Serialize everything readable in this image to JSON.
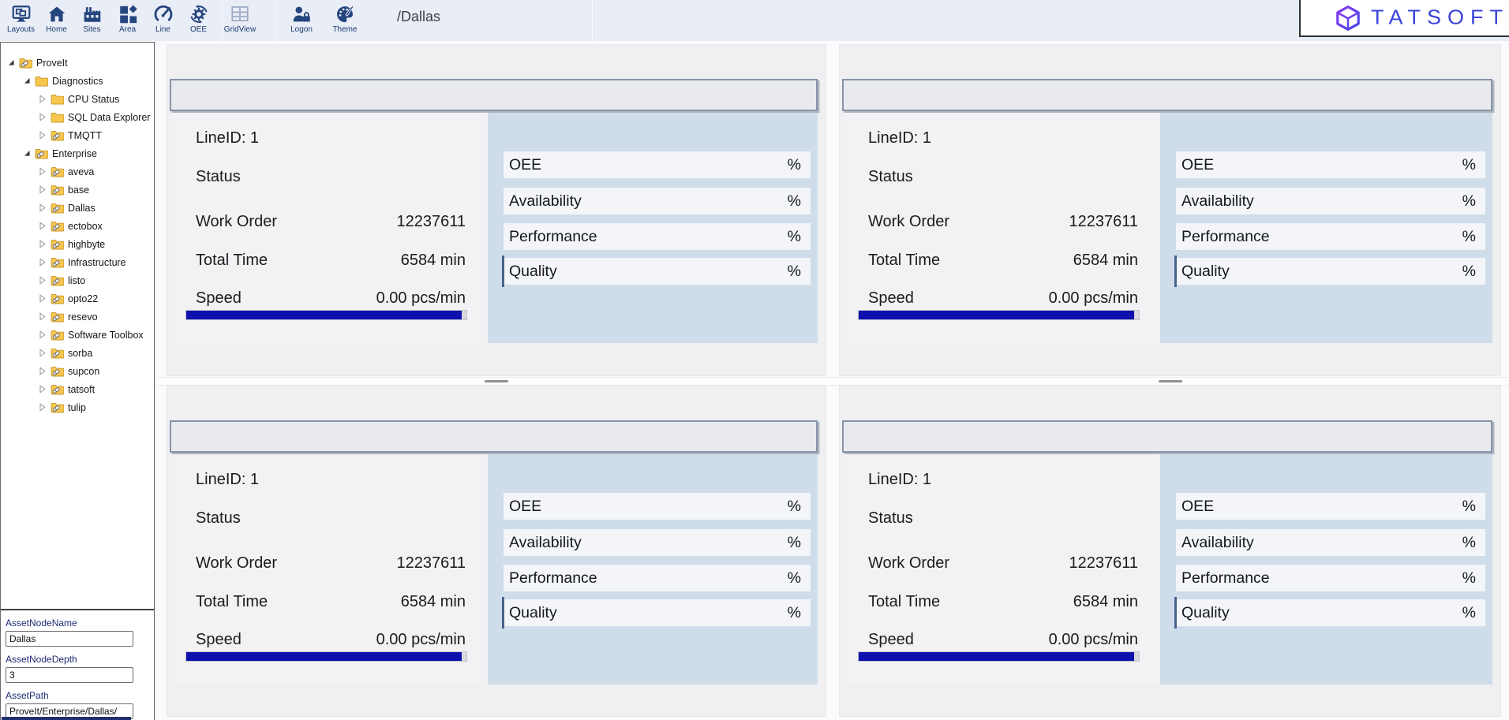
{
  "toolbar": {
    "buttons": [
      {
        "label": "Layouts",
        "icon": "layouts-icon"
      },
      {
        "label": "Home",
        "icon": "home-icon"
      },
      {
        "label": "Sites",
        "icon": "sites-icon"
      },
      {
        "label": "Area",
        "icon": "area-icon"
      },
      {
        "label": "Line",
        "icon": "line-icon"
      },
      {
        "label": "OEE",
        "icon": "oee-icon"
      },
      {
        "label": "GridView",
        "icon": "gridview-icon"
      },
      {
        "label": "Logon",
        "icon": "logon-icon"
      },
      {
        "label": "Theme",
        "icon": "theme-icon"
      }
    ],
    "breadcrumb": "/Dallas"
  },
  "logo": {
    "text": "TATSOFT"
  },
  "sidebar": {
    "tree": [
      {
        "label": "ProveIt",
        "level": 0,
        "state": "expanded",
        "icon": "linked-folder"
      },
      {
        "label": "Diagnostics",
        "level": 1,
        "state": "expanded",
        "icon": "folder"
      },
      {
        "label": "CPU Status",
        "level": 2,
        "state": "collapsed",
        "icon": "folder"
      },
      {
        "label": "SQL Data Explorer",
        "level": 2,
        "state": "collapsed",
        "icon": "folder"
      },
      {
        "label": "TMQTT",
        "level": 2,
        "state": "collapsed",
        "icon": "linked-folder"
      },
      {
        "label": "Enterprise",
        "level": 1,
        "state": "expanded",
        "icon": "linked-folder"
      },
      {
        "label": "aveva",
        "level": 2,
        "state": "collapsed",
        "icon": "linked-folder"
      },
      {
        "label": "base",
        "level": 2,
        "state": "collapsed",
        "icon": "linked-folder"
      },
      {
        "label": "Dallas",
        "level": 2,
        "state": "collapsed",
        "icon": "linked-folder"
      },
      {
        "label": "ectobox",
        "level": 2,
        "state": "collapsed",
        "icon": "linked-folder"
      },
      {
        "label": "highbyte",
        "level": 2,
        "state": "collapsed",
        "icon": "linked-folder"
      },
      {
        "label": "Infrastructure",
        "level": 2,
        "state": "collapsed",
        "icon": "linked-folder"
      },
      {
        "label": "listo",
        "level": 2,
        "state": "collapsed",
        "icon": "linked-folder"
      },
      {
        "label": "opto22",
        "level": 2,
        "state": "collapsed",
        "icon": "linked-folder"
      },
      {
        "label": "resevo",
        "level": 2,
        "state": "collapsed",
        "icon": "linked-folder"
      },
      {
        "label": "Software Toolbox",
        "level": 2,
        "state": "collapsed",
        "icon": "linked-folder"
      },
      {
        "label": "sorba",
        "level": 2,
        "state": "collapsed",
        "icon": "linked-folder"
      },
      {
        "label": "supcon",
        "level": 2,
        "state": "collapsed",
        "icon": "linked-folder"
      },
      {
        "label": "tatsoft",
        "level": 2,
        "state": "collapsed",
        "icon": "linked-folder"
      },
      {
        "label": "tulip",
        "level": 2,
        "state": "collapsed",
        "icon": "linked-folder"
      }
    ],
    "fields": [
      {
        "label": "AssetNodeName",
        "value": "Dallas"
      },
      {
        "label": "AssetNodeDepth",
        "value": "3"
      },
      {
        "label": "AssetPath",
        "value": "ProveIt/Enterprise/Dallas/"
      }
    ]
  },
  "panels": [
    {
      "line_id": "LineID: 1",
      "status_label": "Status",
      "metrics": [
        {
          "label": "Work Order",
          "value": "12237611"
        },
        {
          "label": "Total Time",
          "value": "6584 min"
        },
        {
          "label": "Speed",
          "value": "0.00 pcs/min"
        }
      ],
      "speed_progress_pct": 98.2,
      "kpis": [
        {
          "label": "OEE",
          "unit": "%"
        },
        {
          "label": "Availability",
          "unit": "%"
        },
        {
          "label": "Performance",
          "unit": "%"
        },
        {
          "label": "Quality",
          "unit": "%"
        }
      ]
    },
    {
      "line_id": "LineID: 1",
      "status_label": "Status",
      "metrics": [
        {
          "label": "Work Order",
          "value": "12237611"
        },
        {
          "label": "Total Time",
          "value": "6584 min"
        },
        {
          "label": "Speed",
          "value": "0.00 pcs/min"
        }
      ],
      "speed_progress_pct": 98.2,
      "kpis": [
        {
          "label": "OEE",
          "unit": "%"
        },
        {
          "label": "Availability",
          "unit": "%"
        },
        {
          "label": "Performance",
          "unit": "%"
        },
        {
          "label": "Quality",
          "unit": "%"
        }
      ]
    },
    {
      "line_id": "LineID: 1",
      "status_label": "Status",
      "metrics": [
        {
          "label": "Work Order",
          "value": "12237611"
        },
        {
          "label": "Total Time",
          "value": "6584 min"
        },
        {
          "label": "Speed",
          "value": "0.00 pcs/min"
        }
      ],
      "speed_progress_pct": 98.2,
      "kpis": [
        {
          "label": "OEE",
          "unit": "%"
        },
        {
          "label": "Availability",
          "unit": "%"
        },
        {
          "label": "Performance",
          "unit": "%"
        },
        {
          "label": "Quality",
          "unit": "%"
        }
      ]
    },
    {
      "line_id": "LineID: 1",
      "status_label": "Status",
      "metrics": [
        {
          "label": "Work Order",
          "value": "12237611"
        },
        {
          "label": "Total Time",
          "value": "6584 min"
        },
        {
          "label": "Speed",
          "value": "0.00 pcs/min"
        }
      ],
      "speed_progress_pct": 98.2,
      "kpis": [
        {
          "label": "OEE",
          "unit": "%"
        },
        {
          "label": "Availability",
          "unit": "%"
        },
        {
          "label": "Performance",
          "unit": "%"
        },
        {
          "label": "Quality",
          "unit": "%"
        }
      ]
    }
  ],
  "colors": {
    "toolbar_bg": "#e9edf6",
    "icon_navy": "#24457e",
    "panel_bg": "#f0f0f2",
    "kpi_panel_blue": "#cfdcea",
    "kpi_row_bg": "#f3f5f8",
    "progress_navy": "#0e10ae",
    "logo_blue": "#3b43dc",
    "logo_purple": "#8b3bf2",
    "sidebar_accent_navy": "#20306e",
    "folder_yellow": "#f7c64f"
  }
}
